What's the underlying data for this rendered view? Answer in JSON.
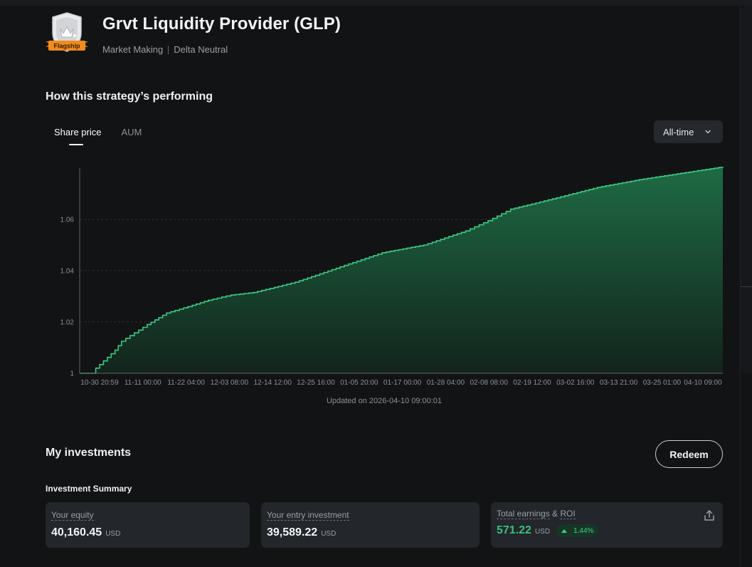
{
  "header": {
    "badge_label": "Flagship",
    "title": "Grvt Liquidity Provider (GLP)",
    "tags": [
      "Market Making",
      "Delta Neutral"
    ]
  },
  "performance": {
    "heading": "How this strategy’s performing",
    "tabs": [
      {
        "label": "Share price",
        "active": true
      },
      {
        "label": "AUM",
        "active": false
      }
    ],
    "range": "All-time",
    "updated": "Updated on 2026-04-10 09:00:01"
  },
  "chart_data": {
    "type": "area",
    "title": "",
    "xlabel": "",
    "ylabel": "",
    "ylim": [
      1.0,
      1.08
    ],
    "yticks": [
      "1",
      "1.02",
      "1.04",
      "1.06"
    ],
    "xticks": [
      "10-30 20:59",
      "11-11 00:00",
      "11-22 04:00",
      "12-03 08:00",
      "12-14 12:00",
      "12-25 16:00",
      "01-05 20:00",
      "01-17 00:00",
      "01-28 04:00",
      "02-08 08:00",
      "02-19 12:00",
      "03-02 16:00",
      "03-13 21:00",
      "03-25 01:00",
      "04-10 09:00"
    ],
    "grid": true,
    "line_color": "#3ec882",
    "series": [
      {
        "x": [
          "10-30 20:59",
          "11-03",
          "11-05",
          "11-06",
          "11-11 00:00",
          "11-18",
          "11-22 04:00",
          "11-29",
          "12-03 08:00",
          "12-08",
          "12-14 12:00",
          "12-25 16:00",
          "01-05 20:00",
          "01-17 00:00",
          "01-28 04:00",
          "02-08 08:00",
          "02-13",
          "02-19 12:00",
          "03-02 16:00",
          "03-13 21:00",
          "03-25 01:00",
          "04-10 09:00"
        ],
        "values": [
          1.0,
          1.0,
          1.002,
          1.009,
          1.0125,
          1.019,
          1.0235,
          1.0265,
          1.0285,
          1.0305,
          1.0315,
          1.0355,
          1.0415,
          1.047,
          1.05,
          1.0555,
          1.0595,
          1.064,
          1.068,
          1.0725,
          1.0755,
          1.0805
        ]
      }
    ]
  },
  "investments": {
    "heading": "My investments",
    "redeem_label": "Redeem",
    "summary_heading": "Investment Summary",
    "cards": [
      {
        "label": "Your equity",
        "value": "40,160.45",
        "unit": "USD"
      },
      {
        "label": "Your entry investment",
        "value": "39,589.22",
        "unit": "USD"
      },
      {
        "label_a": "Total earnings",
        "label_b": " & ",
        "label_c": "ROI",
        "value": "571.22",
        "unit": "USD",
        "roi": "1.44%"
      }
    ]
  },
  "colors": {
    "background": "#121315",
    "card": "#23262a",
    "accent_green": "#36c17a",
    "badge_orange": "#f08c1e"
  },
  "icons": [
    "flagship-badge-icon",
    "chevron-down-icon",
    "triangle-up-icon",
    "share-icon"
  ]
}
